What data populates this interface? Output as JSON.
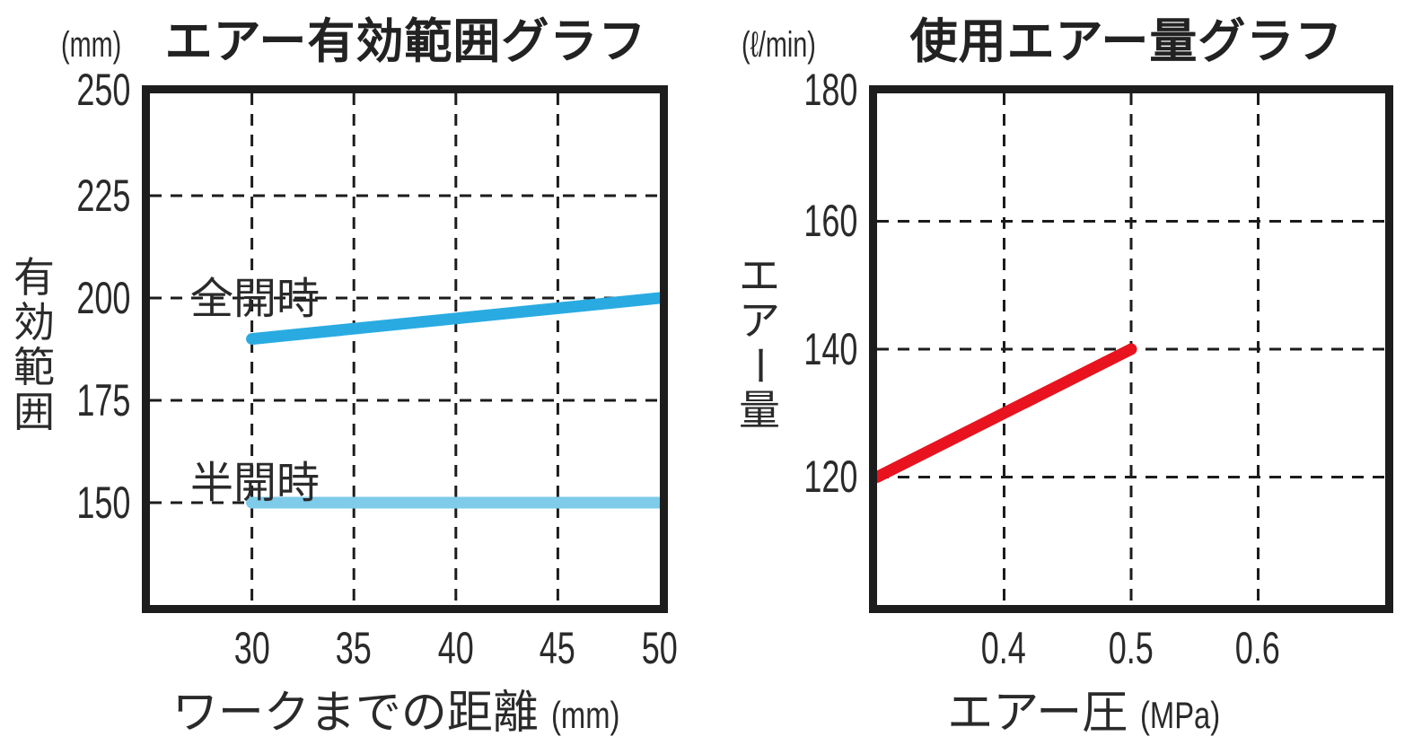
{
  "ui": {
    "left": {
      "title": "エアー有効範囲グラフ",
      "unit": "(mm)",
      "y_label_chars": [
        "有",
        "効",
        "範",
        "囲"
      ],
      "y_ticks": [
        "250",
        "225",
        "200",
        "175",
        "150"
      ],
      "x_ticks": [
        "30",
        "35",
        "40",
        "45",
        "50"
      ],
      "series_full_open": "全開時",
      "series_half_open": "半開時",
      "x_title": "ワークまでの距離",
      "x_title_unit": "(mm)"
    },
    "right": {
      "title": "使用エアー量グラフ",
      "unit": "(ℓ/min)",
      "y_label_chars": [
        "エ",
        "ア",
        "ー",
        "量"
      ],
      "y_ticks": [
        "180",
        "160",
        "140",
        "120"
      ],
      "x_ticks": [
        "0.4",
        "0.5",
        "0.6"
      ],
      "x_title": "エアー圧",
      "x_title_unit": "(MPa)"
    },
    "colors": {
      "full_open_line": "#29ABE2",
      "half_open_line": "#7ECBEA",
      "air_flow_line": "#E8131E",
      "axis": "#1d1d1d",
      "grid": "#1c1c1c"
    }
  },
  "chart_data": [
    {
      "type": "line",
      "title": "エアー有効範囲グラフ",
      "xlabel": "ワークまでの距離 (mm)",
      "ylabel": "有効範囲 (mm)",
      "xlim": [
        25,
        50
      ],
      "ylim": [
        125,
        250
      ],
      "x_ticks": [
        30,
        35,
        40,
        45,
        50
      ],
      "y_ticks": [
        150,
        175,
        200,
        225,
        250
      ],
      "grid": "dashed",
      "legend_position": "inline-labels",
      "series": [
        {
          "name": "全開時",
          "color": "#29ABE2",
          "x": [
            30,
            35,
            40,
            45,
            50
          ],
          "values": [
            190,
            192.5,
            195,
            197.5,
            200
          ]
        },
        {
          "name": "半開時",
          "color": "#7ECBEA",
          "x": [
            30,
            50
          ],
          "values": [
            150,
            150
          ]
        }
      ]
    },
    {
      "type": "line",
      "title": "使用エアー量グラフ",
      "xlabel": "エアー圧 (MPa)",
      "ylabel": "エアー量 (ℓ/min)",
      "xlim": [
        0.3,
        0.7
      ],
      "ylim": [
        100,
        180
      ],
      "x_ticks": [
        0.4,
        0.5,
        0.6
      ],
      "y_ticks": [
        120,
        140,
        160,
        180
      ],
      "grid": "dashed",
      "legend_position": "none",
      "series": [
        {
          "name": "使用エアー量",
          "color": "#E8131E",
          "x": [
            0.3,
            0.5
          ],
          "values": [
            120,
            140
          ]
        }
      ]
    }
  ]
}
